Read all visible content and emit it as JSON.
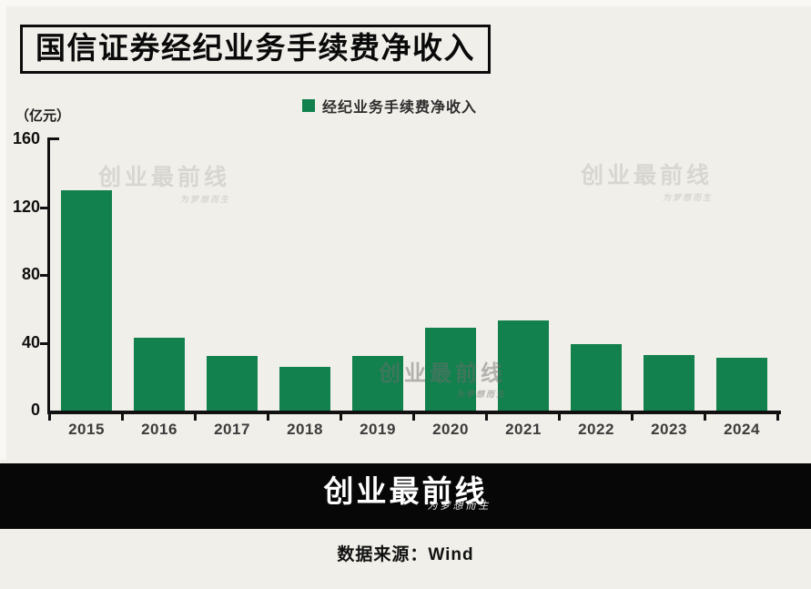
{
  "page": {
    "title": "国信证券经纪业务手续费净收入",
    "unit_label": "（亿元）",
    "source_label": "数据来源：Wind"
  },
  "legend": {
    "label": "经纪业务手续费净收入",
    "color": "#12814E"
  },
  "watermark": {
    "text": "创业最前线",
    "signature": "为梦想而生"
  },
  "brand": {
    "logo_text": "创业最前线",
    "signature": "为梦想而生"
  },
  "colors": {
    "background": "#F1EFE9",
    "bar": "#12814E",
    "axis": "#111111",
    "x_label": "#3C3C3C",
    "y_label": "#101010",
    "watermark_light": "#D8D6D0",
    "watermark_mid": "rgba(108,108,108,0.48)",
    "band_background": "#070707",
    "band_text": "#FFFFFF"
  },
  "chart_data": {
    "type": "bar",
    "title": "国信证券经纪业务手续费净收入",
    "series_name": "经纪业务手续费净收入",
    "unit": "亿元",
    "categories": [
      "2015",
      "2016",
      "2017",
      "2018",
      "2019",
      "2020",
      "2021",
      "2022",
      "2023",
      "2024"
    ],
    "values": [
      130,
      43,
      32,
      26,
      32,
      49,
      53,
      39,
      33,
      31
    ],
    "ylim": [
      0,
      160
    ],
    "yticks": [
      0,
      40,
      80,
      120,
      160
    ],
    "grid": false,
    "legend_position": "top-center",
    "bar_color": "#12814E"
  }
}
